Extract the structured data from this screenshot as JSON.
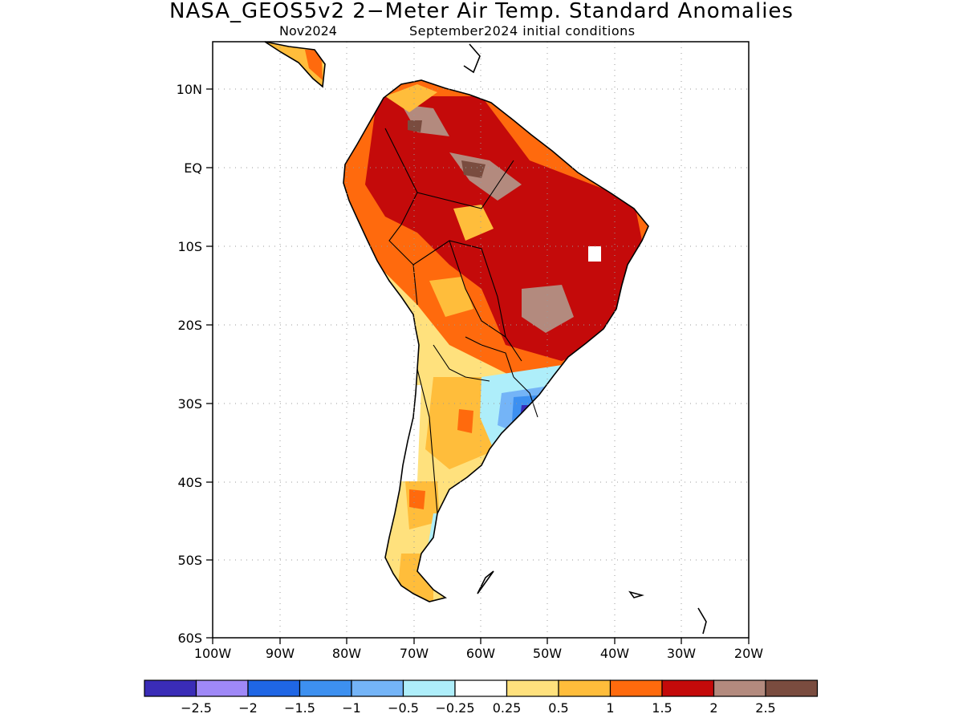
{
  "title": "NASA_GEOS5v2 2−Meter Air Temp. Standard Anomalies",
  "subtitle_left": "Nov2024",
  "subtitle_right": "September2024 initial conditions",
  "lat_labels": [
    "10N",
    "EQ",
    "10S",
    "20S",
    "30S",
    "40S",
    "50S",
    "60S"
  ],
  "lon_labels": [
    "100W",
    "90W",
    "80W",
    "70W",
    "60W",
    "50W",
    "40W",
    "30W",
    "20W"
  ],
  "colorbar": {
    "colors": [
      "#3a2cb7",
      "#9f88f7",
      "#1f66e5",
      "#3d90f0",
      "#74b4f7",
      "#aeeefa",
      "#ffffff",
      "#ffe17d",
      "#ffbd3b",
      "#ff6a0d",
      "#c40a0a",
      "#b38a7e",
      "#7a4c3f"
    ],
    "labels": [
      "−2.5",
      "−2",
      "−1.5",
      "−1",
      "−0.5",
      "−0.25",
      "0.25",
      "0.5",
      "1",
      "1.5",
      "2",
      "2.5"
    ]
  }
}
